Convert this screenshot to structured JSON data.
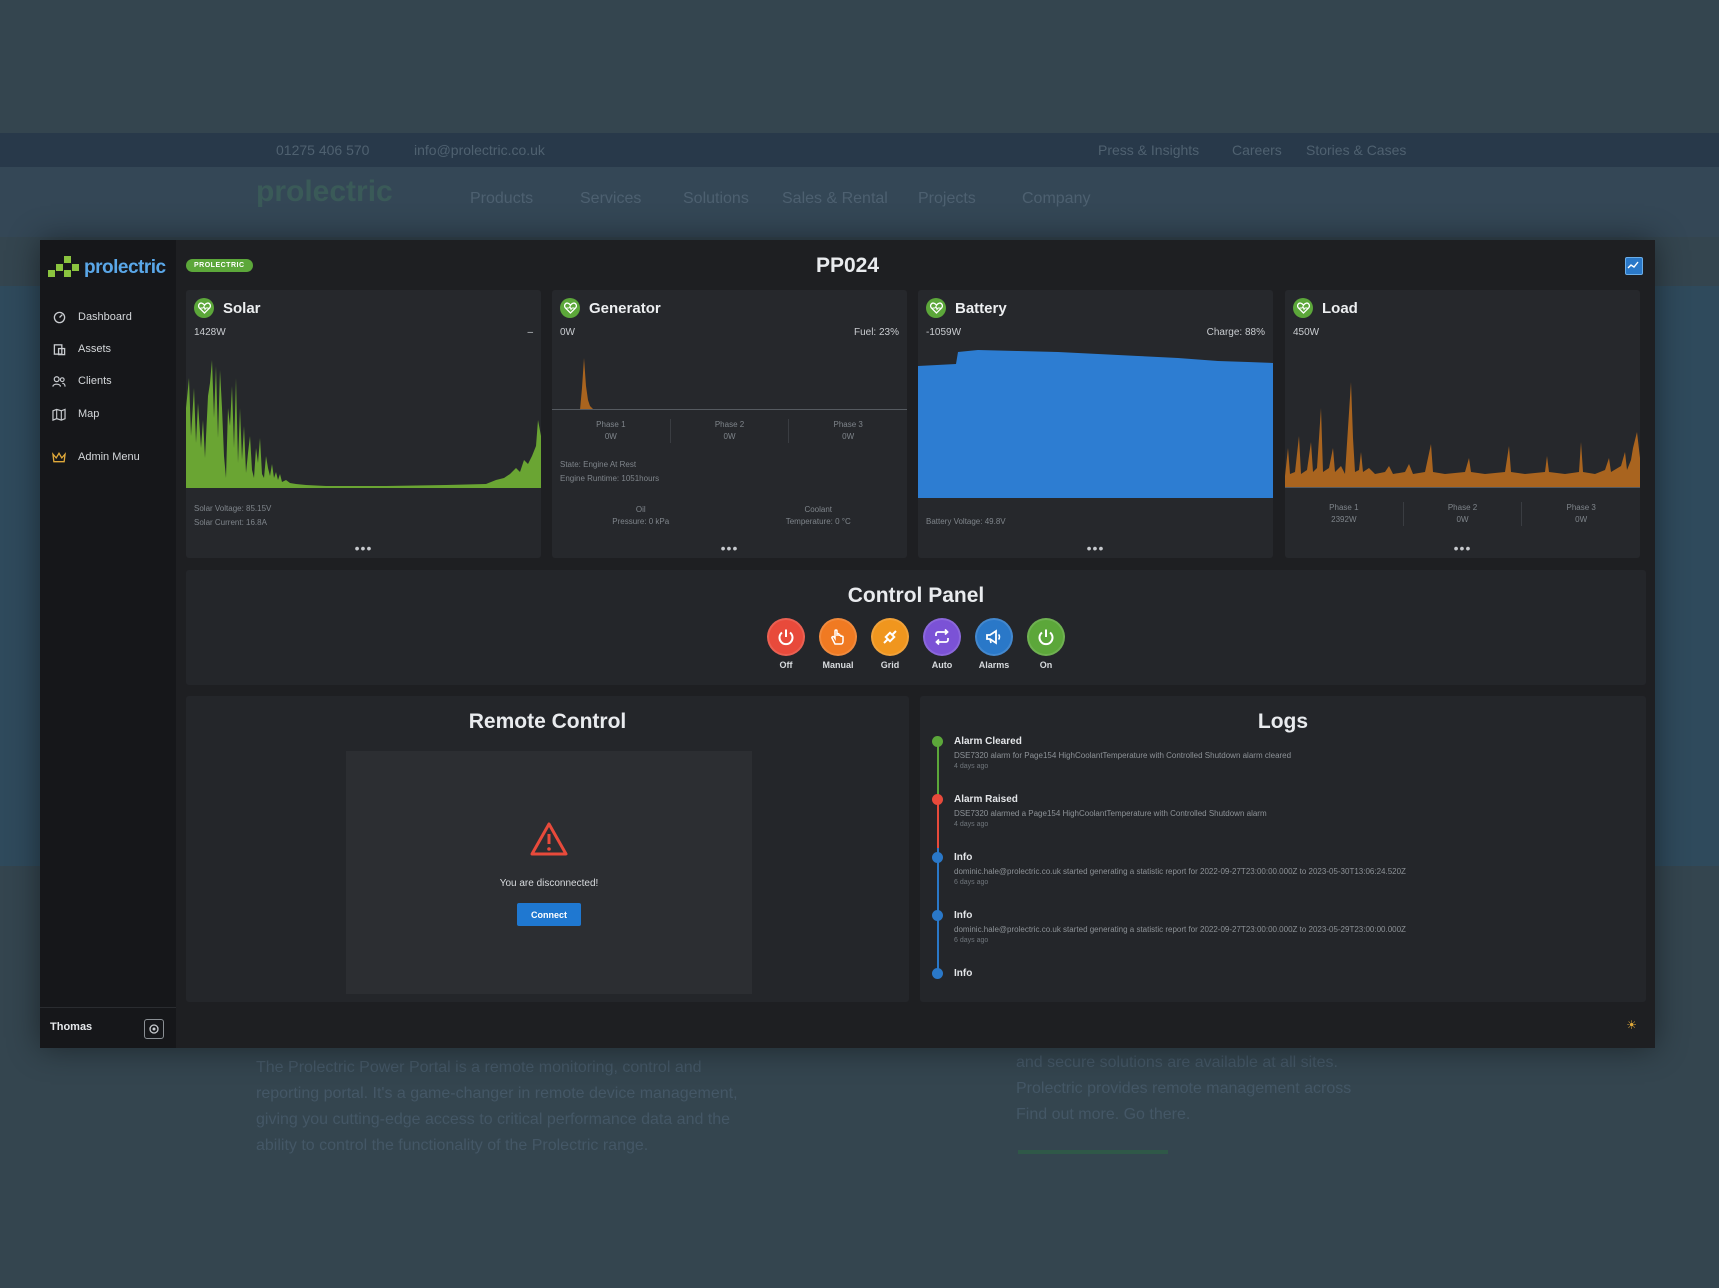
{
  "background": {
    "phone": "01275 406 570",
    "email": "info@prolectric.co.uk",
    "top_links": [
      "Press & Insights",
      "Careers",
      "Stories & Cases"
    ],
    "logo": "prolectric",
    "menu": [
      "Products",
      "Services",
      "Solutions",
      "Sales & Rental",
      "Projects",
      "Company"
    ],
    "para_left": [
      "The Prolectric Power Portal is a remote monitoring, control and",
      "reporting portal. It's a game-changer in remote device management,",
      "giving you cutting-edge access to critical performance data and the",
      "ability to control the functionality of the Prolectric range."
    ],
    "para_right": [
      "and secure solutions are available at all sites.",
      "Prolectric provides remote management across",
      "Find out more. Go there."
    ]
  },
  "app": {
    "logo_text": "prolectric",
    "badge": "PROLECTRIC",
    "title": "PP024",
    "colors": {
      "accent": "#5ca73a",
      "primary": "#1f78d1",
      "warning": "#e84a3b"
    }
  },
  "sidebar": {
    "items": [
      {
        "label": "Dashboard",
        "icon": "dashboard-icon"
      },
      {
        "label": "Assets",
        "icon": "assets-icon"
      },
      {
        "label": "Clients",
        "icon": "clients-icon"
      },
      {
        "label": "Map",
        "icon": "map-icon"
      },
      {
        "label": "Admin Menu",
        "icon": "crown-icon"
      }
    ],
    "user": "Thomas"
  },
  "cards": {
    "solar": {
      "title": "Solar",
      "value": "1428W",
      "right": "–",
      "voltage": "Solar Voltage: 85.15V",
      "current": "Solar Current: 16.8A"
    },
    "generator": {
      "title": "Generator",
      "value": "0W",
      "fuel": "Fuel: 23%",
      "phases": [
        {
          "name": "Phase 1",
          "value": "0W"
        },
        {
          "name": "Phase 2",
          "value": "0W"
        },
        {
          "name": "Phase 3",
          "value": "0W"
        }
      ],
      "state": "State: Engine At Rest",
      "runtime": "Engine Runtime: 1051hours",
      "oil_label": "Oil",
      "oil_value": "Pressure: 0 kPa",
      "coolant_label": "Coolant",
      "coolant_value": "Temperature: 0 °C"
    },
    "battery": {
      "title": "Battery",
      "value": "-1059W",
      "charge": "Charge: 88%",
      "voltage": "Battery Voltage: 49.8V"
    },
    "load": {
      "title": "Load",
      "value": "450W",
      "phases": [
        {
          "name": "Phase 1",
          "value": "2392W"
        },
        {
          "name": "Phase 2",
          "value": "0W"
        },
        {
          "name": "Phase 3",
          "value": "0W"
        }
      ]
    },
    "more_label": "•••"
  },
  "control_panel": {
    "title": "Control Panel",
    "buttons": [
      {
        "label": "Off",
        "icon": "power-icon",
        "color": "#e84a3b"
      },
      {
        "label": "Manual",
        "icon": "hand-icon",
        "color": "#f07a22"
      },
      {
        "label": "Grid",
        "icon": "plug-icon",
        "color": "#f0961e"
      },
      {
        "label": "Auto",
        "icon": "repeat-icon",
        "color": "#7b52d6"
      },
      {
        "label": "Alarms",
        "icon": "megaphone-icon",
        "color": "#2a78c8"
      },
      {
        "label": "On",
        "icon": "power-icon",
        "color": "#5ca73a"
      }
    ]
  },
  "remote_control": {
    "title": "Remote Control",
    "message": "You are disconnected!",
    "connect": "Connect"
  },
  "logs": {
    "title": "Logs",
    "entries": [
      {
        "type": "Alarm Cleared",
        "message": "DSE7320 alarm for Page154 HighCoolantTemperature with Controlled Shutdown alarm cleared",
        "age": "4 days ago",
        "color": "#5ca73a"
      },
      {
        "type": "Alarm Raised",
        "message": "DSE7320 alarmed a Page154 HighCoolantTemperature with Controlled Shutdown alarm",
        "age": "4 days ago",
        "color": "#e84a3b"
      },
      {
        "type": "Info",
        "message": "dominic.hale@prolectric.co.uk started generating a statistic report for 2022-09-27T23:00:00.000Z to 2023-05-30T13:06:24.520Z",
        "age": "6 days ago",
        "color": "#2a78c8"
      },
      {
        "type": "Info",
        "message": "dominic.hale@prolectric.co.uk started generating a statistic report for 2022-09-27T23:00:00.000Z to 2023-05-29T23:00:00.000Z",
        "age": "6 days ago",
        "color": "#2a78c8"
      },
      {
        "type": "Info",
        "message": "",
        "age": "",
        "color": "#2a78c8"
      }
    ]
  }
}
